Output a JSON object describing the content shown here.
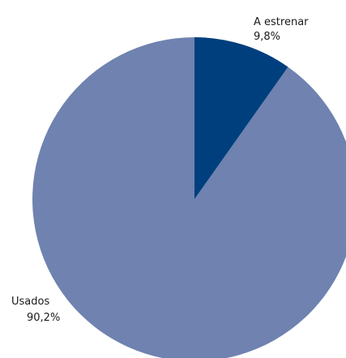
{
  "chart_data": {
    "type": "pie",
    "title": "",
    "slices": [
      {
        "label": "A estrenar",
        "value": 9.8,
        "display": "9,8%",
        "color": "#003f7d"
      },
      {
        "label": "Usados",
        "value": 90.2,
        "display": "90,2%",
        "color": "#6f82b0"
      }
    ],
    "start_angle": "12 o'clock",
    "direction": "clockwise"
  }
}
